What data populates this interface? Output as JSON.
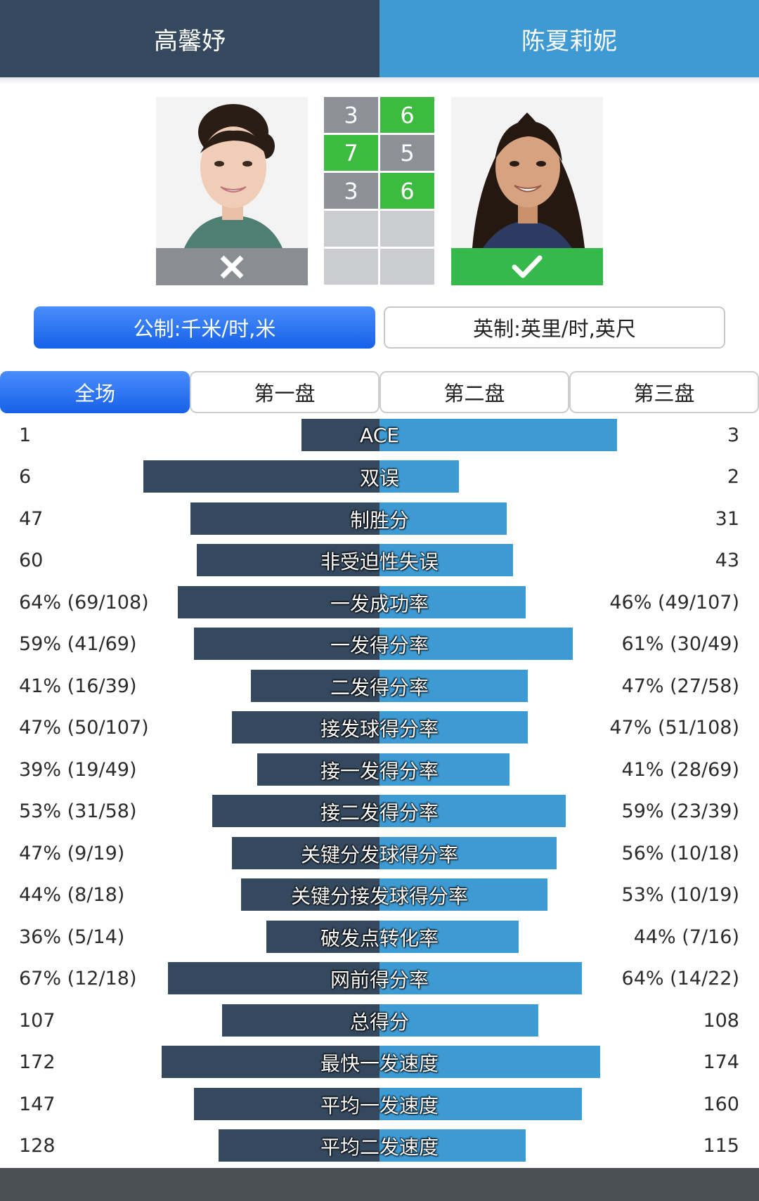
{
  "header": {
    "player1": "高馨妤",
    "player2": "陈夏莉妮"
  },
  "players": {
    "left": {
      "result_icon": "close-icon",
      "result": "lose",
      "result_color": "#8a8d92"
    },
    "right": {
      "result_icon": "check-icon",
      "result": "win",
      "result_color": "#35b94a"
    }
  },
  "sets": [
    {
      "left": "3",
      "right": "6"
    },
    {
      "left": "7",
      "right": "5"
    },
    {
      "left": "3",
      "right": "6"
    },
    {
      "left": "",
      "right": ""
    },
    {
      "left": "",
      "right": ""
    }
  ],
  "units": {
    "metric": "公制:千米/时,米",
    "imperial": "英制:英里/时,英尺",
    "selected": "metric"
  },
  "tabs": [
    "全场",
    "第一盘",
    "第二盘",
    "第三盘"
  ],
  "colors": {
    "player1": "#34485e",
    "player2": "#3d9ad3",
    "set_win": "#3dbb40",
    "set_loss": "#8d9096",
    "active_tab": "#2f79f3"
  },
  "stats": [
    {
      "label": "ACE",
      "left": "1",
      "right": "3"
    },
    {
      "label": "双误",
      "left": "6",
      "right": "2"
    },
    {
      "label": "制胜分",
      "left": "47",
      "right": "31"
    },
    {
      "label": "非受迫性失误",
      "left": "60",
      "right": "43"
    },
    {
      "label": "一发成功率",
      "left": "64% (69/108)",
      "right": "46% (49/107)"
    },
    {
      "label": "一发得分率",
      "left": "59% (41/69)",
      "right": "61% (30/49)"
    },
    {
      "label": "二发得分率",
      "left": "41% (16/39)",
      "right": "47% (27/58)"
    },
    {
      "label": "接发球得分率",
      "left": "47% (50/107)",
      "right": "47% (51/108)"
    },
    {
      "label": "接一发得分率",
      "left": "39% (19/49)",
      "right": "41% (28/69)"
    },
    {
      "label": "接二发得分率",
      "left": "53% (31/58)",
      "right": "59% (23/39)"
    },
    {
      "label": "关键分发球得分率",
      "left": "47% (9/19)",
      "right": "56% (10/18)"
    },
    {
      "label": "关键分接发球得分率",
      "left": "44% (8/18)",
      "right": "53% (10/19)"
    },
    {
      "label": "破发点转化率",
      "left": "36% (5/14)",
      "right": "44% (7/16)"
    },
    {
      "label": "网前得分率",
      "left": "67% (12/18)",
      "right": "64% (14/22)"
    },
    {
      "label": "总得分",
      "left": "107",
      "right": "108"
    },
    {
      "label": "最快一发速度",
      "left": "172",
      "right": "174"
    },
    {
      "label": "平均一发速度",
      "left": "147",
      "right": "160"
    },
    {
      "label": "平均二发速度",
      "left": "128",
      "right": "115"
    }
  ]
}
